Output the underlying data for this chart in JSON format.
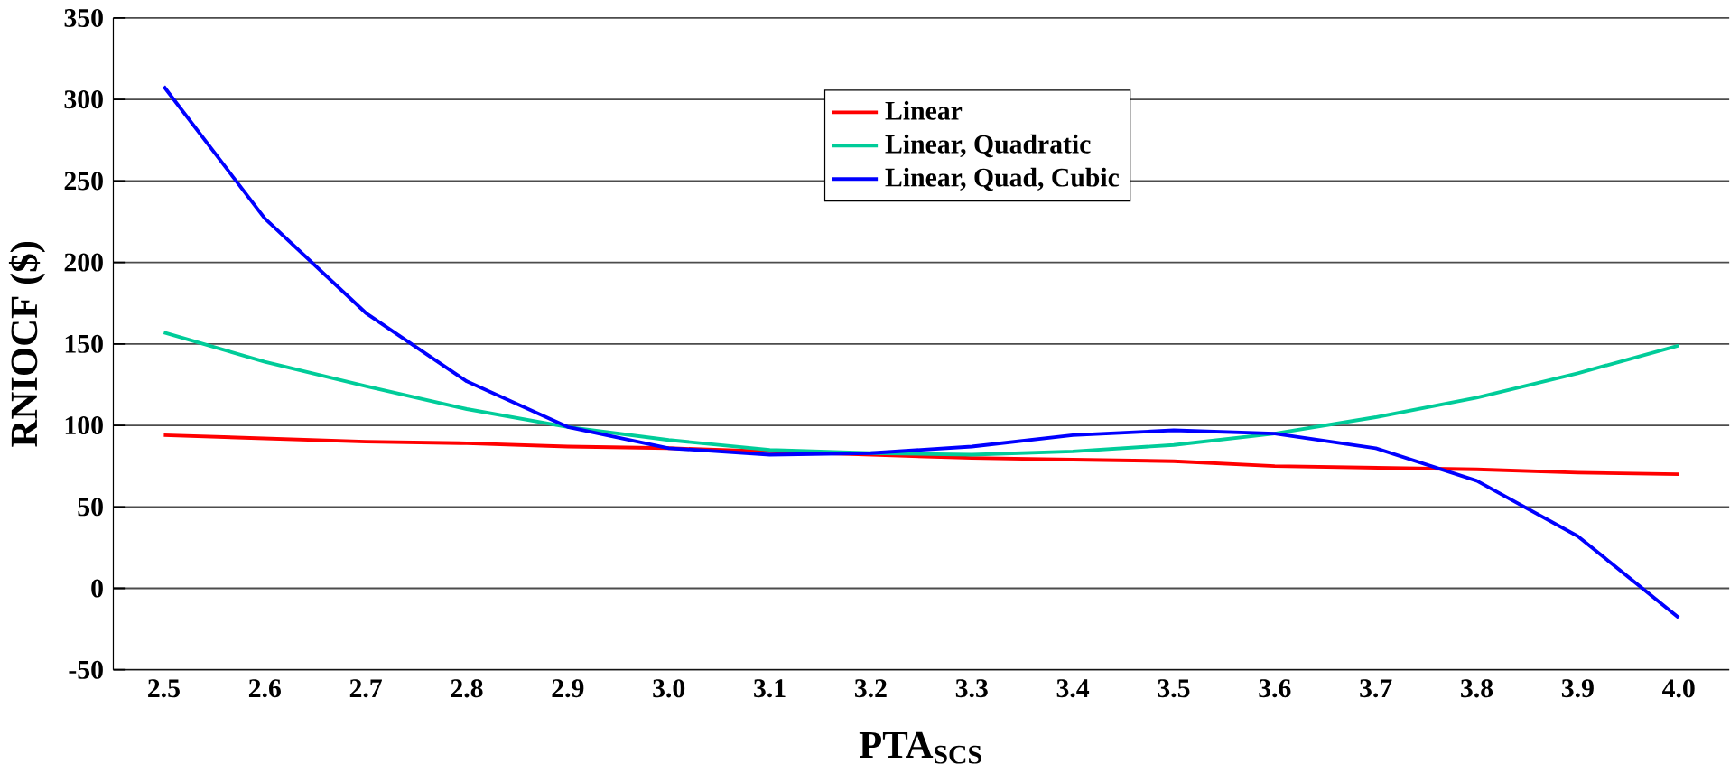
{
  "chart_data": {
    "type": "line",
    "xlabel": "PTA$_{SCS}$",
    "ylabel": "RNIOCF ($)",
    "categories": [
      "2.5",
      "2.6",
      "2.7",
      "2.8",
      "2.9",
      "3.0",
      "3.1",
      "3.2",
      "3.3",
      "3.4",
      "3.5",
      "3.6",
      "3.7",
      "3.8",
      "3.9",
      "4.0"
    ],
    "series": [
      {
        "name": "Linear",
        "color": "#ff0000",
        "values": [
          94,
          92,
          90,
          89,
          87,
          86,
          84,
          82,
          80,
          79,
          78,
          75,
          74,
          73,
          71,
          70
        ]
      },
      {
        "name": "Linear, Quadratic",
        "color": "#00cc99",
        "values": [
          157,
          139,
          124,
          110,
          99,
          91,
          85,
          83,
          82,
          84,
          88,
          95,
          105,
          117,
          132,
          149
        ]
      },
      {
        "name": "Linear, Quad, Cubic",
        "color": "#0000ff",
        "values": [
          308,
          227,
          169,
          127,
          99,
          86,
          82,
          83,
          87,
          94,
          97,
          95,
          86,
          66,
          32,
          -18
        ]
      }
    ],
    "ylim": [
      -50,
      350
    ],
    "yticks": [
      -50,
      0,
      50,
      100,
      150,
      200,
      250,
      300,
      350
    ],
    "grid": "y",
    "legend": "top",
    "marker": "none",
    "line_style": "solid"
  }
}
